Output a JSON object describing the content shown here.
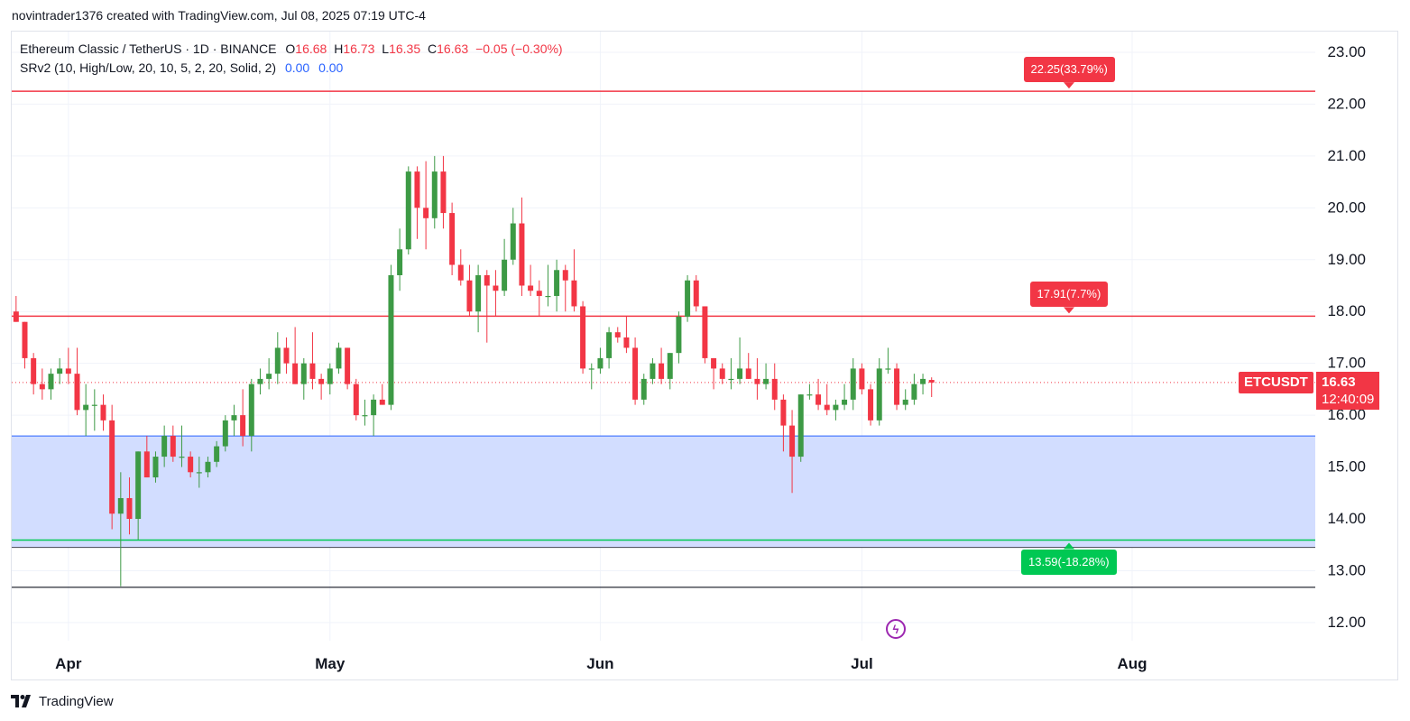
{
  "caption": "novintrader1376 created with TradingView.com, Jul 08, 2025 07:19 UTC-4",
  "legend": {
    "symbol": "Ethereum Classic / TetherUS · 1D · BINANCE",
    "open_label": "O",
    "open": "16.68",
    "high_label": "H",
    "high": "16.73",
    "low_label": "L",
    "low": "16.35",
    "close_label": "C",
    "close": "16.63",
    "change": "−0.05 (−0.30%)",
    "indicator": "SRv2 (10, High/Low, 20, 10, 5, 2, 20, Solid, 2)",
    "indicator_v1": "0.00",
    "indicator_v2": "0.00"
  },
  "ticker_tag": "ETCUSDT",
  "price_tag": {
    "price": "16.63",
    "countdown": "12:40:09"
  },
  "footer": {
    "brand": "TradingView"
  },
  "icons": {
    "logo": "tradingview-logo-icon",
    "alert": "lightning-icon"
  },
  "colors": {
    "up": "#3d9a45",
    "down": "#f23645",
    "resistance": "#f23645",
    "support": "#00c853",
    "zone": "#d2ddff",
    "zone_border": "#2962ff",
    "grid": "#f0f3fa",
    "axis_text": "#131722"
  },
  "chart_data": {
    "type": "candlestick",
    "title": "Ethereum Classic / TetherUS · 1D · BINANCE",
    "y_axis": {
      "ticks": [
        12,
        13,
        14,
        15,
        16,
        17,
        18,
        19,
        20,
        21,
        22,
        23
      ],
      "tick_labels": [
        "12.00",
        "13.00",
        "14.00",
        "15.00",
        "16.00",
        "17.00",
        "18.00",
        "19.00",
        "20.00",
        "21.00",
        "22.00",
        "23.00"
      ],
      "range": [
        11.65,
        23.4
      ]
    },
    "x_axis": {
      "labels": [
        "Apr",
        "May",
        "Jun",
        "Jul",
        "Aug"
      ],
      "label_dates": [
        "2025-04-01",
        "2025-05-01",
        "2025-06-01",
        "2025-07-01",
        "2025-08-01"
      ],
      "range": [
        "2025-03-26",
        "2025-08-22"
      ]
    },
    "candles": [
      {
        "date": "2025-03-26",
        "o": 18.0,
        "h": 18.3,
        "l": 17.8,
        "c": 17.8
      },
      {
        "date": "2025-03-27",
        "o": 17.8,
        "h": 17.8,
        "l": 16.9,
        "c": 17.1
      },
      {
        "date": "2025-03-28",
        "o": 17.1,
        "h": 17.2,
        "l": 16.4,
        "c": 16.6
      },
      {
        "date": "2025-03-29",
        "o": 16.6,
        "h": 16.9,
        "l": 16.3,
        "c": 16.5
      },
      {
        "date": "2025-03-30",
        "o": 16.5,
        "h": 16.9,
        "l": 16.3,
        "c": 16.8
      },
      {
        "date": "2025-03-31",
        "o": 16.8,
        "h": 17.1,
        "l": 16.6,
        "c": 16.9
      },
      {
        "date": "2025-04-01",
        "o": 16.9,
        "h": 17.3,
        "l": 16.6,
        "c": 16.8
      },
      {
        "date": "2025-04-02",
        "o": 16.8,
        "h": 17.3,
        "l": 16.0,
        "c": 16.1
      },
      {
        "date": "2025-04-03",
        "o": 16.1,
        "h": 16.6,
        "l": 15.6,
        "c": 16.2
      },
      {
        "date": "2025-04-04",
        "o": 16.2,
        "h": 16.5,
        "l": 15.7,
        "c": 16.2
      },
      {
        "date": "2025-04-05",
        "o": 16.2,
        "h": 16.4,
        "l": 15.7,
        "c": 15.9
      },
      {
        "date": "2025-04-06",
        "o": 15.9,
        "h": 16.2,
        "l": 13.8,
        "c": 14.1
      },
      {
        "date": "2025-04-07",
        "o": 14.1,
        "h": 14.9,
        "l": 12.7,
        "c": 14.4
      },
      {
        "date": "2025-04-08",
        "o": 14.4,
        "h": 14.8,
        "l": 13.7,
        "c": 14.0
      },
      {
        "date": "2025-04-09",
        "o": 14.0,
        "h": 15.3,
        "l": 13.6,
        "c": 15.3
      },
      {
        "date": "2025-04-10",
        "o": 15.3,
        "h": 15.6,
        "l": 14.8,
        "c": 14.8
      },
      {
        "date": "2025-04-11",
        "o": 14.8,
        "h": 15.3,
        "l": 14.7,
        "c": 15.2
      },
      {
        "date": "2025-04-12",
        "o": 15.2,
        "h": 15.8,
        "l": 15.0,
        "c": 15.6
      },
      {
        "date": "2025-04-13",
        "o": 15.6,
        "h": 15.8,
        "l": 15.1,
        "c": 15.2
      },
      {
        "date": "2025-04-14",
        "o": 15.2,
        "h": 15.8,
        "l": 15.0,
        "c": 15.2
      },
      {
        "date": "2025-04-15",
        "o": 15.2,
        "h": 15.3,
        "l": 14.8,
        "c": 14.9
      },
      {
        "date": "2025-04-16",
        "o": 14.9,
        "h": 15.2,
        "l": 14.6,
        "c": 14.9
      },
      {
        "date": "2025-04-17",
        "o": 14.9,
        "h": 15.2,
        "l": 14.8,
        "c": 15.1
      },
      {
        "date": "2025-04-18",
        "o": 15.1,
        "h": 15.5,
        "l": 15.0,
        "c": 15.4
      },
      {
        "date": "2025-04-19",
        "o": 15.4,
        "h": 16.0,
        "l": 15.3,
        "c": 15.9
      },
      {
        "date": "2025-04-20",
        "o": 15.9,
        "h": 16.2,
        "l": 15.6,
        "c": 16.0
      },
      {
        "date": "2025-04-21",
        "o": 16.0,
        "h": 16.5,
        "l": 15.4,
        "c": 15.6
      },
      {
        "date": "2025-04-22",
        "o": 15.6,
        "h": 16.7,
        "l": 15.3,
        "c": 16.6
      },
      {
        "date": "2025-04-23",
        "o": 16.6,
        "h": 16.9,
        "l": 16.4,
        "c": 16.7
      },
      {
        "date": "2025-04-24",
        "o": 16.7,
        "h": 17.1,
        "l": 16.5,
        "c": 16.8
      },
      {
        "date": "2025-04-25",
        "o": 16.8,
        "h": 17.6,
        "l": 16.6,
        "c": 17.3
      },
      {
        "date": "2025-04-26",
        "o": 17.3,
        "h": 17.5,
        "l": 16.8,
        "c": 17.0
      },
      {
        "date": "2025-04-27",
        "o": 17.0,
        "h": 17.7,
        "l": 16.6,
        "c": 16.6
      },
      {
        "date": "2025-04-28",
        "o": 16.6,
        "h": 17.1,
        "l": 16.3,
        "c": 17.0
      },
      {
        "date": "2025-04-29",
        "o": 17.0,
        "h": 17.6,
        "l": 16.5,
        "c": 16.7
      },
      {
        "date": "2025-04-30",
        "o": 16.7,
        "h": 16.8,
        "l": 16.3,
        "c": 16.6
      },
      {
        "date": "2025-05-01",
        "o": 16.6,
        "h": 17.0,
        "l": 16.4,
        "c": 16.9
      },
      {
        "date": "2025-05-02",
        "o": 16.9,
        "h": 17.4,
        "l": 16.8,
        "c": 17.3
      },
      {
        "date": "2025-05-03",
        "o": 17.3,
        "h": 17.3,
        "l": 16.5,
        "c": 16.6
      },
      {
        "date": "2025-05-04",
        "o": 16.6,
        "h": 16.7,
        "l": 15.9,
        "c": 16.0
      },
      {
        "date": "2025-05-05",
        "o": 16.0,
        "h": 16.3,
        "l": 15.8,
        "c": 16.0
      },
      {
        "date": "2025-05-06",
        "o": 16.0,
        "h": 16.4,
        "l": 15.6,
        "c": 16.3
      },
      {
        "date": "2025-05-07",
        "o": 16.3,
        "h": 16.6,
        "l": 16.2,
        "c": 16.2
      },
      {
        "date": "2025-05-08",
        "o": 16.2,
        "h": 18.9,
        "l": 16.1,
        "c": 18.7
      },
      {
        "date": "2025-05-09",
        "o": 18.7,
        "h": 19.6,
        "l": 18.4,
        "c": 19.2
      },
      {
        "date": "2025-05-10",
        "o": 19.2,
        "h": 20.8,
        "l": 19.1,
        "c": 20.7
      },
      {
        "date": "2025-05-11",
        "o": 20.7,
        "h": 20.8,
        "l": 19.4,
        "c": 20.0
      },
      {
        "date": "2025-05-12",
        "o": 20.0,
        "h": 20.9,
        "l": 19.2,
        "c": 19.8
      },
      {
        "date": "2025-05-13",
        "o": 19.8,
        "h": 21.0,
        "l": 19.6,
        "c": 20.7
      },
      {
        "date": "2025-05-14",
        "o": 20.7,
        "h": 21.0,
        "l": 19.6,
        "c": 19.9
      },
      {
        "date": "2025-05-15",
        "o": 19.9,
        "h": 20.1,
        "l": 18.7,
        "c": 18.9
      },
      {
        "date": "2025-05-16",
        "o": 18.9,
        "h": 19.2,
        "l": 18.5,
        "c": 18.6
      },
      {
        "date": "2025-05-17",
        "o": 18.6,
        "h": 18.9,
        "l": 17.9,
        "c": 18.0
      },
      {
        "date": "2025-05-18",
        "o": 18.0,
        "h": 18.9,
        "l": 17.6,
        "c": 18.7
      },
      {
        "date": "2025-05-19",
        "o": 18.7,
        "h": 18.8,
        "l": 17.4,
        "c": 18.5
      },
      {
        "date": "2025-05-20",
        "o": 18.5,
        "h": 18.8,
        "l": 17.9,
        "c": 18.4
      },
      {
        "date": "2025-05-21",
        "o": 18.4,
        "h": 19.4,
        "l": 18.3,
        "c": 19.0
      },
      {
        "date": "2025-05-22",
        "o": 19.0,
        "h": 20.0,
        "l": 18.9,
        "c": 19.7
      },
      {
        "date": "2025-05-23",
        "o": 19.7,
        "h": 20.2,
        "l": 18.3,
        "c": 18.5
      },
      {
        "date": "2025-05-24",
        "o": 18.5,
        "h": 18.9,
        "l": 18.3,
        "c": 18.4
      },
      {
        "date": "2025-05-25",
        "o": 18.4,
        "h": 18.6,
        "l": 17.9,
        "c": 18.3
      },
      {
        "date": "2025-05-26",
        "o": 18.3,
        "h": 18.9,
        "l": 18.1,
        "c": 18.3
      },
      {
        "date": "2025-05-27",
        "o": 18.3,
        "h": 19.0,
        "l": 18.0,
        "c": 18.8
      },
      {
        "date": "2025-05-28",
        "o": 18.8,
        "h": 18.9,
        "l": 18.0,
        "c": 18.6
      },
      {
        "date": "2025-05-29",
        "o": 18.6,
        "h": 19.2,
        "l": 18.0,
        "c": 18.1
      },
      {
        "date": "2025-05-30",
        "o": 18.1,
        "h": 18.2,
        "l": 16.8,
        "c": 16.9
      },
      {
        "date": "2025-05-31",
        "o": 16.9,
        "h": 17.0,
        "l": 16.5,
        "c": 16.9
      },
      {
        "date": "2025-06-01",
        "o": 16.9,
        "h": 17.3,
        "l": 16.8,
        "c": 17.1
      },
      {
        "date": "2025-06-02",
        "o": 17.1,
        "h": 17.7,
        "l": 16.9,
        "c": 17.6
      },
      {
        "date": "2025-06-03",
        "o": 17.6,
        "h": 17.7,
        "l": 17.4,
        "c": 17.5
      },
      {
        "date": "2025-06-04",
        "o": 17.5,
        "h": 17.9,
        "l": 17.2,
        "c": 17.3
      },
      {
        "date": "2025-06-05",
        "o": 17.3,
        "h": 17.5,
        "l": 16.2,
        "c": 16.3
      },
      {
        "date": "2025-06-06",
        "o": 16.3,
        "h": 16.8,
        "l": 16.2,
        "c": 16.7
      },
      {
        "date": "2025-06-07",
        "o": 16.7,
        "h": 17.1,
        "l": 16.6,
        "c": 17.0
      },
      {
        "date": "2025-06-08",
        "o": 17.0,
        "h": 17.3,
        "l": 16.6,
        "c": 16.7
      },
      {
        "date": "2025-06-09",
        "o": 16.7,
        "h": 17.2,
        "l": 16.5,
        "c": 17.2
      },
      {
        "date": "2025-06-10",
        "o": 17.2,
        "h": 18.0,
        "l": 17.0,
        "c": 17.9
      },
      {
        "date": "2025-06-11",
        "o": 17.9,
        "h": 18.7,
        "l": 17.8,
        "c": 18.6
      },
      {
        "date": "2025-06-12",
        "o": 18.6,
        "h": 18.7,
        "l": 18.0,
        "c": 18.1
      },
      {
        "date": "2025-06-13",
        "o": 18.1,
        "h": 18.1,
        "l": 17.0,
        "c": 17.1
      },
      {
        "date": "2025-06-14",
        "o": 17.1,
        "h": 17.1,
        "l": 16.5,
        "c": 16.9
      },
      {
        "date": "2025-06-15",
        "o": 16.9,
        "h": 17.0,
        "l": 16.6,
        "c": 16.7
      },
      {
        "date": "2025-06-16",
        "o": 16.7,
        "h": 17.1,
        "l": 16.5,
        "c": 16.7
      },
      {
        "date": "2025-06-17",
        "o": 16.7,
        "h": 17.5,
        "l": 16.6,
        "c": 16.9
      },
      {
        "date": "2025-06-18",
        "o": 16.9,
        "h": 17.2,
        "l": 16.7,
        "c": 16.7
      },
      {
        "date": "2025-06-19",
        "o": 16.7,
        "h": 17.1,
        "l": 16.3,
        "c": 16.6
      },
      {
        "date": "2025-06-20",
        "o": 16.6,
        "h": 17.0,
        "l": 16.5,
        "c": 16.7
      },
      {
        "date": "2025-06-21",
        "o": 16.7,
        "h": 17.0,
        "l": 16.1,
        "c": 16.3
      },
      {
        "date": "2025-06-22",
        "o": 16.3,
        "h": 16.4,
        "l": 15.3,
        "c": 15.8
      },
      {
        "date": "2025-06-23",
        "o": 15.8,
        "h": 16.1,
        "l": 14.5,
        "c": 15.2
      },
      {
        "date": "2025-06-24",
        "o": 15.2,
        "h": 16.4,
        "l": 15.1,
        "c": 16.4
      },
      {
        "date": "2025-06-25",
        "o": 16.4,
        "h": 16.6,
        "l": 16.3,
        "c": 16.4
      },
      {
        "date": "2025-06-26",
        "o": 16.4,
        "h": 16.7,
        "l": 16.1,
        "c": 16.2
      },
      {
        "date": "2025-06-27",
        "o": 16.2,
        "h": 16.6,
        "l": 16.0,
        "c": 16.1
      },
      {
        "date": "2025-06-28",
        "o": 16.1,
        "h": 16.3,
        "l": 15.9,
        "c": 16.2
      },
      {
        "date": "2025-06-29",
        "o": 16.2,
        "h": 16.6,
        "l": 16.1,
        "c": 16.3
      },
      {
        "date": "2025-06-30",
        "o": 16.3,
        "h": 17.1,
        "l": 16.1,
        "c": 16.9
      },
      {
        "date": "2025-07-01",
        "o": 16.9,
        "h": 17.0,
        "l": 16.4,
        "c": 16.5
      },
      {
        "date": "2025-07-02",
        "o": 16.5,
        "h": 16.6,
        "l": 15.8,
        "c": 15.9
      },
      {
        "date": "2025-07-03",
        "o": 15.9,
        "h": 17.1,
        "l": 15.8,
        "c": 16.9
      },
      {
        "date": "2025-07-04",
        "o": 16.9,
        "h": 17.3,
        "l": 16.8,
        "c": 16.9
      },
      {
        "date": "2025-07-05",
        "o": 16.9,
        "h": 17.0,
        "l": 16.1,
        "c": 16.2
      },
      {
        "date": "2025-07-06",
        "o": 16.2,
        "h": 16.5,
        "l": 16.1,
        "c": 16.3
      },
      {
        "date": "2025-07-07",
        "o": 16.3,
        "h": 16.8,
        "l": 16.2,
        "c": 16.6
      },
      {
        "date": "2025-07-08",
        "o": 16.6,
        "h": 16.8,
        "l": 16.4,
        "c": 16.7
      },
      {
        "date": "2025-07-09",
        "o": 16.68,
        "h": 16.73,
        "l": 16.35,
        "c": 16.63
      }
    ],
    "levels": [
      {
        "kind": "resistance",
        "price": 22.25,
        "label": "22.25(33.79%)"
      },
      {
        "kind": "resistance",
        "price": 17.91,
        "label": "17.91(7.7%)"
      },
      {
        "kind": "support",
        "price": 13.59,
        "label": "13.59(-18.28%)"
      },
      {
        "kind": "line",
        "price": 12.68,
        "label": ""
      }
    ],
    "zone": {
      "top": 15.6,
      "bottom": 13.45
    },
    "last_price": 16.63
  }
}
